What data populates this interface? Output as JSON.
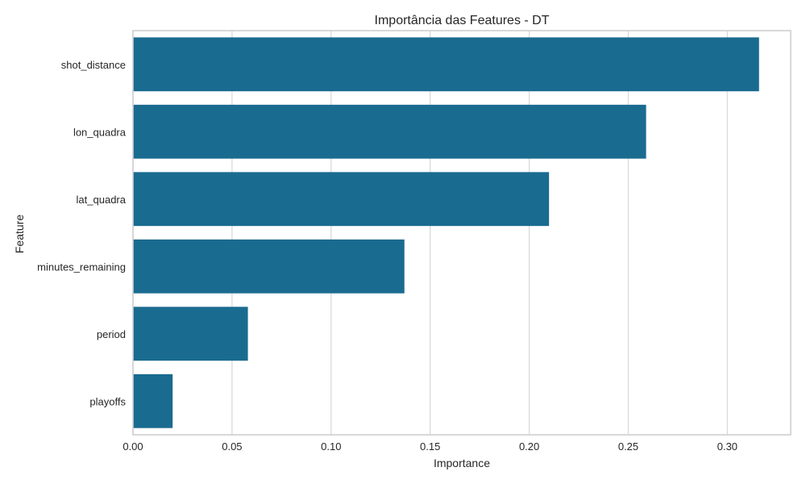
{
  "chart_data": {
    "type": "bar",
    "orientation": "horizontal",
    "title": "Importância das Features - DT",
    "xlabel": "Importance",
    "ylabel": "Feature",
    "categories": [
      "shot_distance",
      "lon_quadra",
      "lat_quadra",
      "minutes_remaining",
      "period",
      "playoffs"
    ],
    "values": [
      0.316,
      0.259,
      0.21,
      0.137,
      0.058,
      0.02
    ],
    "xlim": [
      0,
      0.32
    ],
    "xticks": [
      "0.00",
      "0.05",
      "0.10",
      "0.15",
      "0.20",
      "0.25",
      "0.30"
    ],
    "xtick_values": [
      0,
      0.05,
      0.1,
      0.15,
      0.2,
      0.25,
      0.3
    ],
    "grid": true,
    "bar_color": "#1a6b90"
  }
}
